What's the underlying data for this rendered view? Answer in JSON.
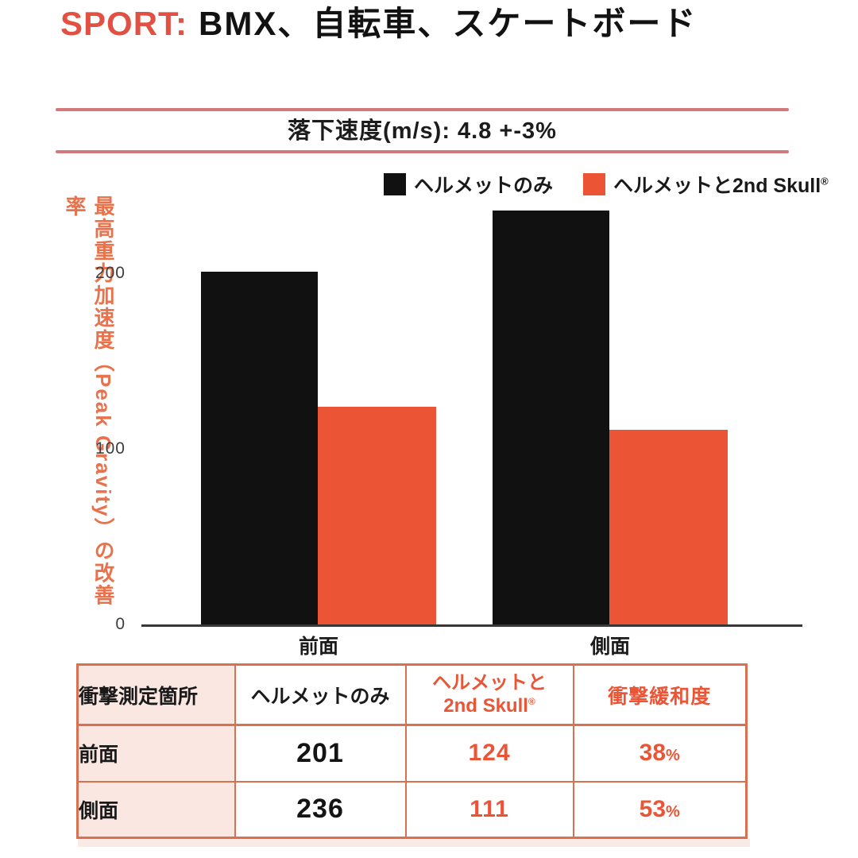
{
  "title": {
    "prefix": "SPORT:",
    "text": "BMX、自転車、スケートボード"
  },
  "subtitle": "落下速度(m/s): 4.8 +-3%",
  "legend": [
    {
      "label": "ヘルメットのみ",
      "reg": "",
      "color": "#111111"
    },
    {
      "label": "ヘルメットと2nd Skull",
      "reg": "®",
      "color": "#EB5536"
    }
  ],
  "chart_data": {
    "type": "bar",
    "categories": [
      "前面",
      "側面"
    ],
    "series": [
      {
        "name": "ヘルメットのみ",
        "color": "#111111",
        "values": [
          201,
          236
        ]
      },
      {
        "name": "ヘルメットと2nd Skull®",
        "color": "#EB5536",
        "values": [
          124,
          111
        ]
      }
    ],
    "title": "落下速度(m/s): 4.8 +-3%",
    "xlabel": "",
    "ylabel": "最高重力加速度（Peak Gravity）の改善率",
    "yticks": [
      0,
      100,
      200
    ],
    "ylim": [
      0,
      250
    ],
    "grid": false,
    "legend_position": "top-right"
  },
  "table": {
    "header": {
      "c1": "衝撃測定箇所",
      "c2": "ヘルメットのみ",
      "c3a": "ヘルメットと",
      "c3b": "2nd Skull",
      "c3_reg": "®",
      "c4": "衝撃緩和度"
    },
    "percent": "%",
    "rows": [
      [
        "前面",
        "201",
        "124",
        "38"
      ],
      [
        "側面",
        "236",
        "111",
        "53"
      ]
    ]
  },
  "colors": {
    "accent_orange": "#EB5536",
    "title_red": "#E25044",
    "rule_rose": "#D3797D",
    "table_border": "#D9704F",
    "label_cell_bg": "#FAE7E2",
    "bar_black": "#111111",
    "axis_gray": "#383838"
  }
}
